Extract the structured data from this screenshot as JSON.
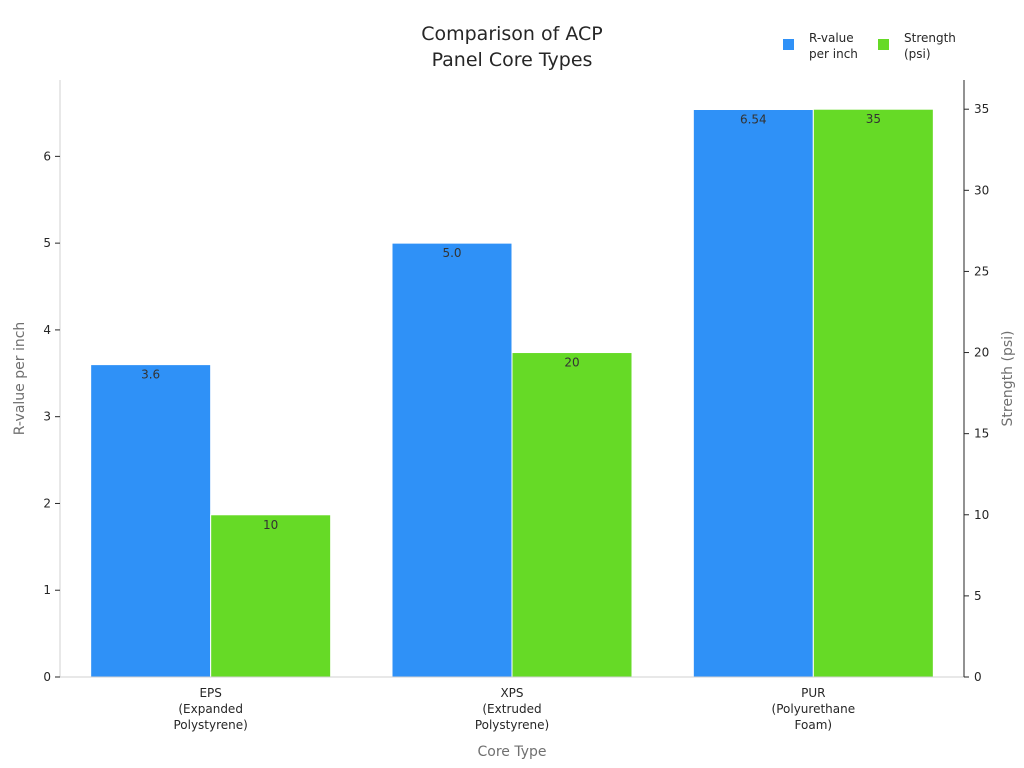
{
  "chart_data": {
    "type": "bar",
    "title_lines": [
      "Comparison of ACP",
      "Panel Core Types"
    ],
    "xlabel": "Core Type",
    "ylabel_left": "R-value per inch",
    "ylabel_right": "Strength (psi)",
    "categories": [
      [
        "EPS",
        "(Expanded",
        "Polystyrene)"
      ],
      [
        "XPS",
        "(Extruded",
        "Polystyrene)"
      ],
      [
        "PUR",
        "(Polyurethane",
        "Foam)"
      ]
    ],
    "series": [
      {
        "name_lines": [
          "R-value",
          "per inch"
        ],
        "axis": "left",
        "color": "#2f91f7",
        "values": [
          3.6,
          5.0,
          6.54
        ],
        "labels": [
          "3.6",
          "5.0",
          "6.54"
        ]
      },
      {
        "name_lines": [
          "Strength",
          "(psi)"
        ],
        "axis": "right",
        "color": "#66da26",
        "values": [
          10,
          20,
          35
        ],
        "labels": [
          "10",
          "20",
          "35"
        ]
      }
    ],
    "ylim_left": [
      0,
      6.88
    ],
    "yticks_left": [
      0,
      1,
      2,
      3,
      4,
      5,
      6
    ],
    "ylim_right": [
      0,
      36.8
    ],
    "yticks_right": [
      0,
      5,
      10,
      15,
      20,
      25,
      30,
      35
    ],
    "legend_position": "top-right",
    "grid": false
  }
}
